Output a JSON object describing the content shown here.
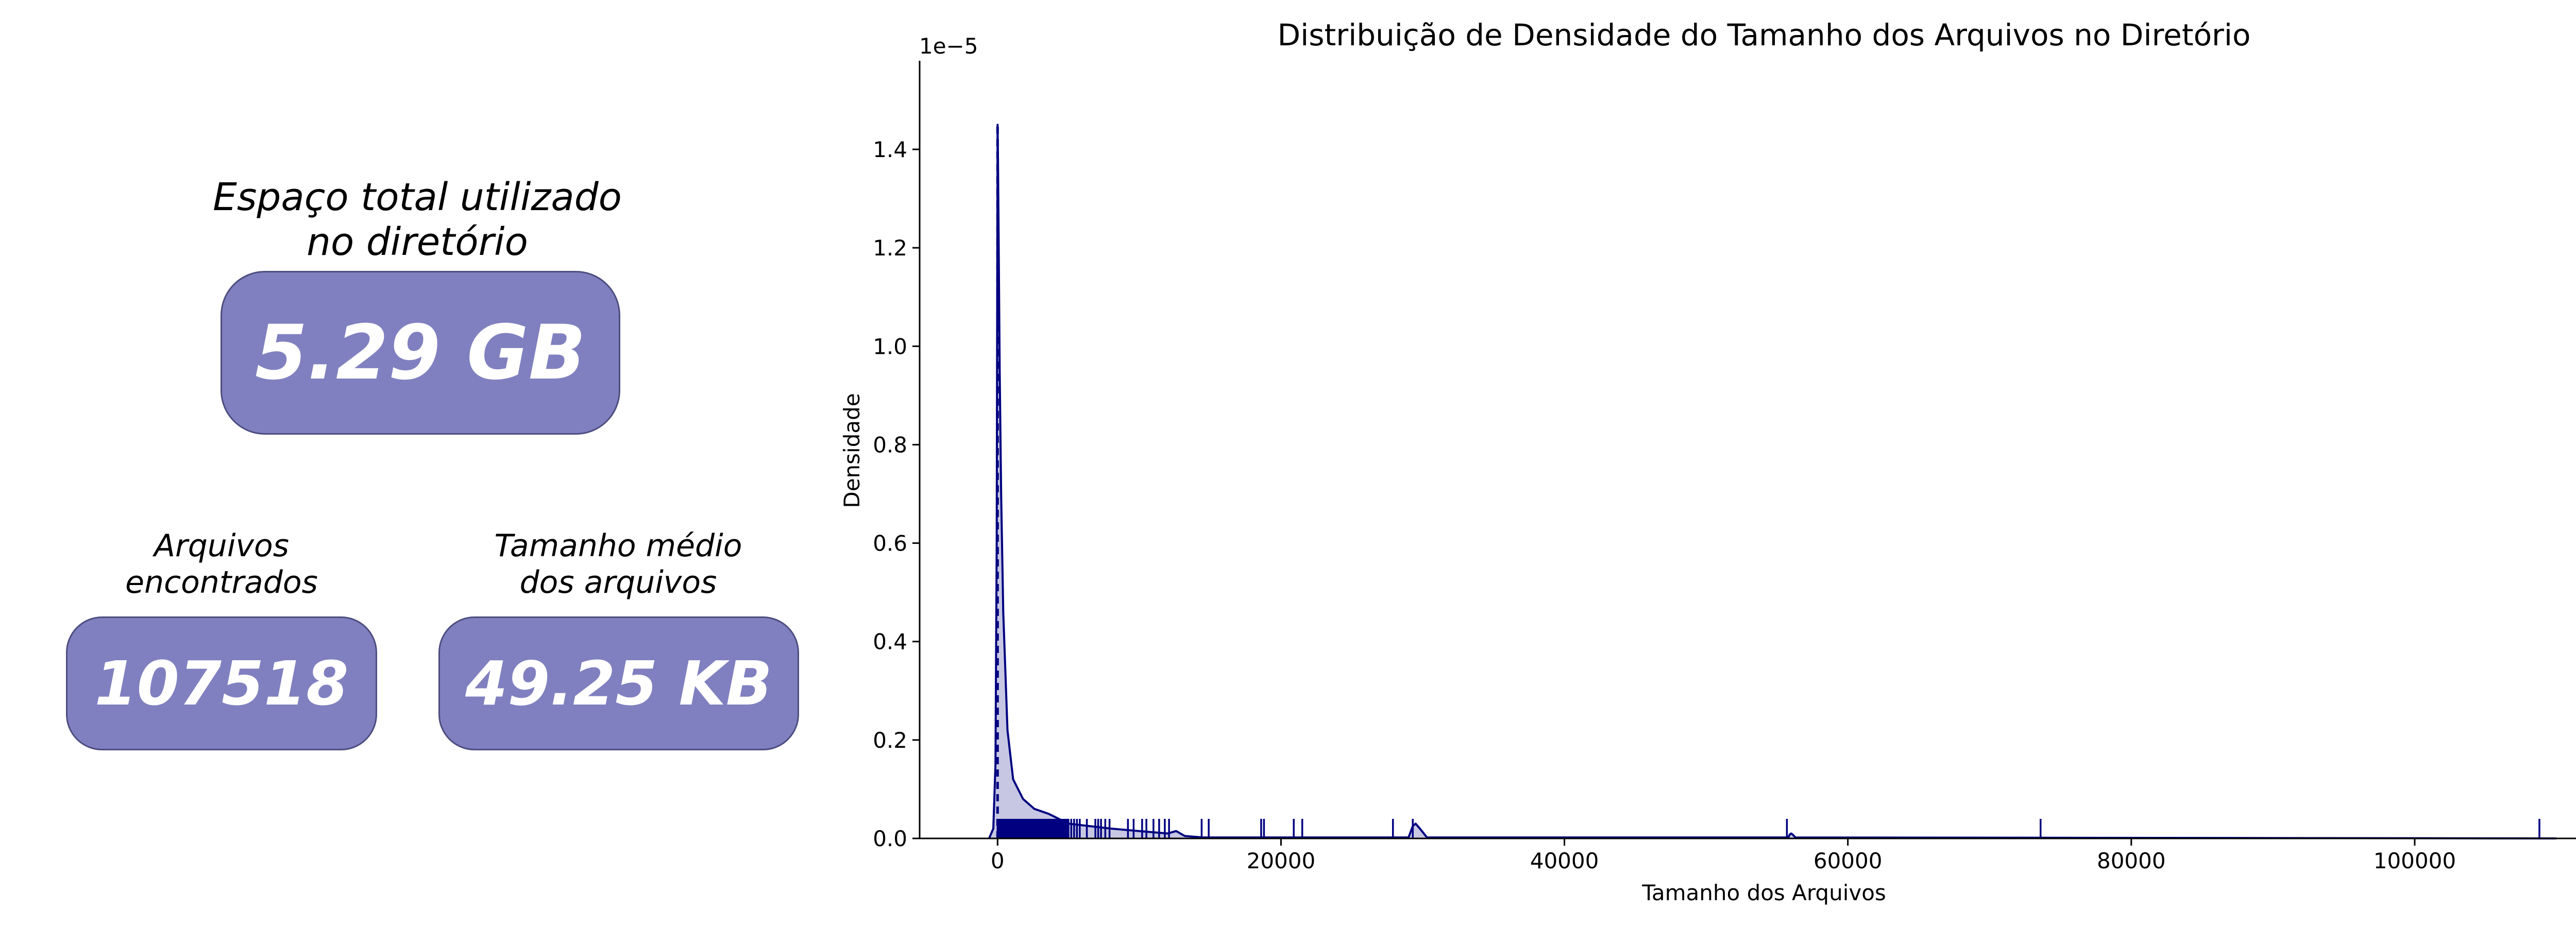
{
  "kpis": {
    "total": {
      "label_line1": "Espaço total utilizado",
      "label_line2": "no diretório",
      "value": "5.29 GB"
    },
    "count": {
      "label_line1": "Arquivos",
      "label_line2": "encontrados",
      "value": "107518"
    },
    "average": {
      "label_line1": "Tamanho médio",
      "label_line2": "dos arquivos",
      "value": "49.25 KB"
    }
  },
  "colors": {
    "card_fill": "#8080c0",
    "card_edge": "#4d4d80",
    "series": "#000080"
  },
  "chart_data": {
    "type": "area",
    "title": "Distribuição de Densidade do Tamanho dos Arquivos no Diretório",
    "xlabel": "Tamanho dos Arquivos",
    "ylabel": "Densidade",
    "y_multiplier_label": "1e−5",
    "xlim": [
      -5500,
      114000
    ],
    "ylim": [
      0,
      1.58
    ],
    "xticks": [
      0,
      20000,
      40000,
      60000,
      80000,
      100000
    ],
    "xtick_labels": [
      "0",
      "20000",
      "40000",
      "60000",
      "80000",
      "100000"
    ],
    "yticks": [
      0.0,
      0.2,
      0.4,
      0.6,
      0.8,
      1.0,
      1.2,
      1.4
    ],
    "ytick_labels": [
      "0.0",
      "0.2",
      "0.4",
      "0.6",
      "0.8",
      "1.0",
      "1.2",
      "1.4"
    ],
    "grid": false,
    "density": {
      "x": [
        -600,
        -300,
        -150,
        -60,
        0,
        30,
        80,
        150,
        250,
        400,
        700,
        1100,
        1800,
        2600,
        3600,
        5000,
        6500,
        8000,
        10000,
        12000,
        12600,
        13200,
        14500,
        29000,
        29300,
        29500,
        29800,
        30300,
        55800,
        55900,
        56000,
        56100,
        56300,
        110000
      ],
      "y": [
        0.0,
        0.02,
        0.15,
        0.6,
        1.45,
        1.38,
        1.2,
        0.95,
        0.7,
        0.46,
        0.22,
        0.12,
        0.08,
        0.06,
        0.05,
        0.03,
        0.025,
        0.02,
        0.015,
        0.01,
        0.015,
        0.005,
        0.002,
        0.002,
        0.025,
        0.03,
        0.02,
        0.002,
        0.002,
        0.008,
        0.01,
        0.008,
        0.002,
        0.0
      ]
    },
    "mean_line_x": 0,
    "rug_values": [
      0,
      50,
      100,
      150,
      200,
      300,
      400,
      500,
      600,
      700,
      800,
      900,
      1000,
      1100,
      1200,
      1300,
      1400,
      1500,
      1600,
      1700,
      1800,
      1900,
      2000,
      2100,
      2200,
      2300,
      2400,
      2500,
      2600,
      2700,
      2800,
      2900,
      3000,
      3100,
      3200,
      3300,
      3400,
      3500,
      3600,
      3700,
      3800,
      3900,
      4000,
      4100,
      4200,
      4300,
      4400,
      4500,
      4600,
      4700,
      4800,
      4900,
      5000,
      5200,
      5400,
      5600,
      5800,
      6300,
      6900,
      7100,
      7300,
      7600,
      7900,
      9200,
      9600,
      10200,
      10500,
      11000,
      11400,
      11800,
      12100,
      14400,
      14900,
      18600,
      18800,
      20900,
      21500,
      27900,
      29300,
      55700,
      73600,
      108800
    ]
  }
}
